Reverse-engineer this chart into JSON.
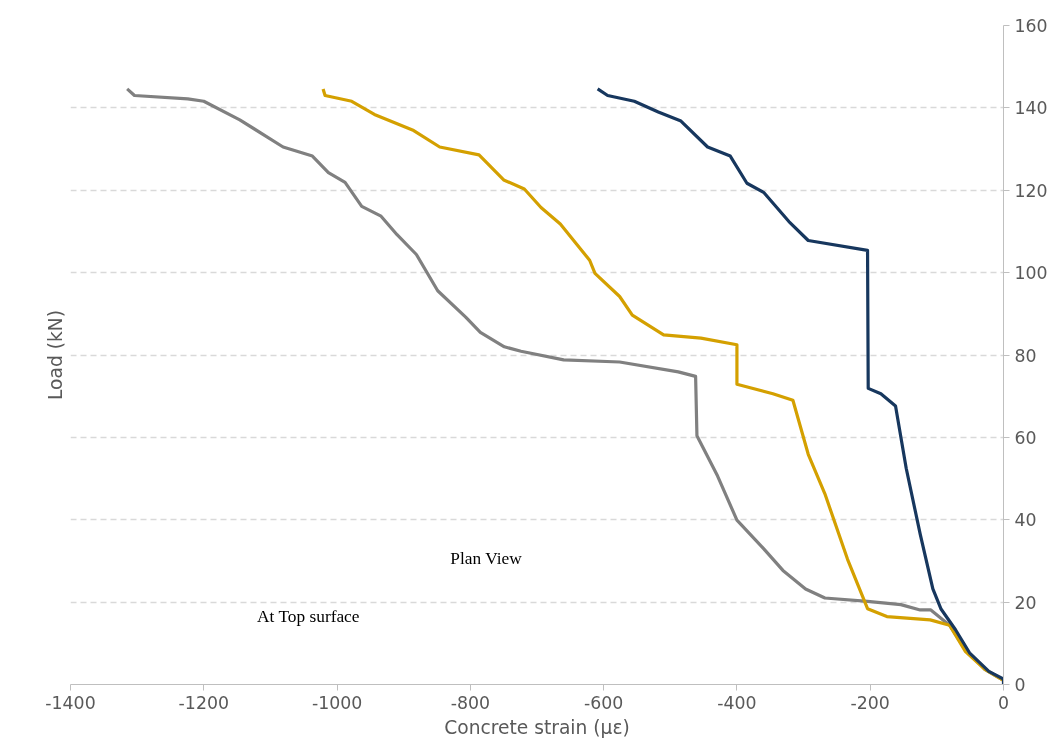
{
  "chart_data": {
    "type": "line",
    "xlabel": "Concrete strain (με)",
    "ylabel": "Load (kN)",
    "xlim": [
      -1400,
      0
    ],
    "ylim": [
      0,
      160
    ],
    "xticks": [
      -1400,
      -1200,
      -1000,
      -800,
      -600,
      -400,
      -200,
      0
    ],
    "yticks": [
      0,
      20,
      40,
      60,
      80,
      100,
      120,
      140,
      160
    ],
    "grid": "y",
    "marker": "none",
    "line_style": "solid",
    "annotations": [
      "Plan View",
      "At Top surface"
    ],
    "series": [
      {
        "color": "#808080",
        "x": [
          -1315,
          -1304,
          -1224,
          -1200,
          -1146,
          -1081,
          -1037,
          -1013,
          -988,
          -963,
          -934,
          -910,
          -881,
          -849,
          -807,
          -785,
          -749,
          -724,
          -660,
          -576,
          -488,
          -462,
          -460,
          -429,
          -400,
          -360,
          -331,
          -297,
          -268,
          -204,
          -154,
          -125,
          -109,
          -81,
          -57,
          -28,
          0
        ],
        "values": [
          144.6,
          143,
          142.2,
          141.6,
          137.1,
          130.5,
          128.3,
          124.3,
          121.9,
          116.1,
          113.7,
          109.2,
          104.4,
          95.6,
          89.2,
          85.5,
          82.0,
          80.9,
          78.8,
          78.3,
          75.9,
          74.8,
          60.4,
          50.6,
          39.9,
          33.0,
          27.7,
          23.2,
          21.0,
          20.2,
          19.4,
          18.1,
          18.1,
          14.4,
          8.5,
          3.7,
          1
        ]
      },
      {
        "color": "#d4a000",
        "x": [
          -1021,
          -1018,
          -978,
          -944,
          -885,
          -846,
          -787,
          -750,
          -719,
          -694,
          -665,
          -621,
          -613,
          -576,
          -557,
          -510,
          -454,
          -400,
          -400,
          -346,
          -316,
          -293,
          -268,
          -234,
          -204,
          -175,
          -110,
          -81,
          -57,
          -28,
          0
        ],
        "values": [
          144.6,
          143,
          141.6,
          138.4,
          134.5,
          130.5,
          128.6,
          122.5,
          120.3,
          115.8,
          111.8,
          103.0,
          99.8,
          94.2,
          89.7,
          84.9,
          84.1,
          82.5,
          72.9,
          70.6,
          69.0,
          55.9,
          46.3,
          30.4,
          18.4,
          16.5,
          15.7,
          14.4,
          8,
          3.7,
          1
        ]
      },
      {
        "color": "#17375e",
        "x": [
          -609,
          -594,
          -554,
          -518,
          -484,
          -444,
          -410,
          -385,
          -360,
          -322,
          -293,
          -204,
          -203,
          -184,
          -162,
          -146,
          -125,
          -106,
          -94,
          -72,
          -51,
          -22,
          0,
          0
        ],
        "values": [
          144.6,
          143,
          141.6,
          139,
          136.8,
          130.5,
          128.3,
          121.7,
          119.5,
          112.4,
          107.8,
          105.4,
          71.9,
          70.6,
          67.6,
          52.5,
          36.5,
          23.2,
          18.4,
          13.3,
          7.7,
          3.2,
          1.3,
          0
        ]
      }
    ]
  }
}
